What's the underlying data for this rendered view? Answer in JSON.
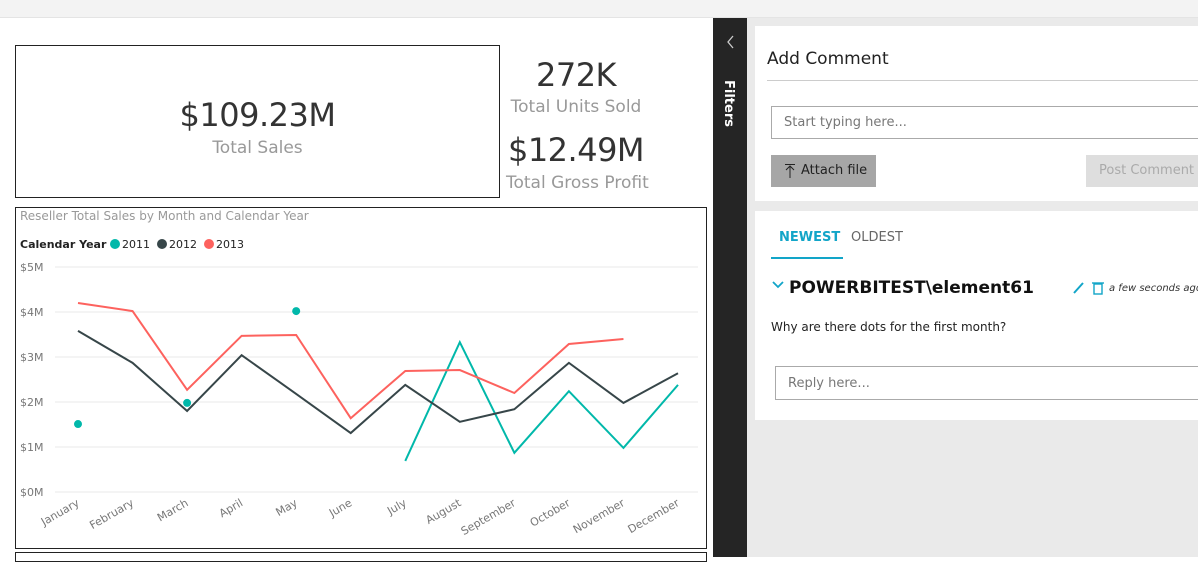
{
  "cards": {
    "total_sales": {
      "value": "$109.23M",
      "label": "Total Sales"
    },
    "units_sold": {
      "value": "272K",
      "label": "Total Units Sold"
    },
    "gross_profit": {
      "value": "$12.49M",
      "label": "Total Gross Profit"
    }
  },
  "chart_data": {
    "type": "line",
    "title": "Reseller Total Sales by Month and Calendar Year",
    "legend_title": "Calendar Year",
    "categories": [
      "January",
      "February",
      "March",
      "April",
      "May",
      "June",
      "July",
      "August",
      "September",
      "October",
      "November",
      "December"
    ],
    "series": [
      {
        "name": "2011",
        "color": "#01b8aa",
        "values": [
          1510000,
          null,
          1980000,
          null,
          4020000,
          null,
          690000,
          3330000,
          870000,
          2240000,
          980000,
          2380000
        ]
      },
      {
        "name": "2012",
        "color": "#374649",
        "values": [
          3580000,
          2870000,
          1800000,
          3040000,
          2180000,
          1310000,
          2380000,
          1560000,
          1840000,
          2870000,
          1980000,
          2640000
        ]
      },
      {
        "name": "2013",
        "color": "#fd625e",
        "values": [
          4200000,
          4020000,
          2270000,
          3470000,
          3490000,
          1640000,
          2690000,
          2710000,
          2200000,
          3290000,
          3400000,
          null
        ]
      }
    ],
    "ylim": [
      0,
      5000000
    ],
    "yticks": [
      {
        "value": 0,
        "label": "$0M"
      },
      {
        "value": 1000000,
        "label": "$1M"
      },
      {
        "value": 2000000,
        "label": "$2M"
      },
      {
        "value": 3000000,
        "label": "$3M"
      },
      {
        "value": 4000000,
        "label": "$4M"
      },
      {
        "value": 5000000,
        "label": "$5M"
      }
    ],
    "grid": true
  },
  "filters_label": "Filters",
  "comments": {
    "title": "Add Comment",
    "input_placeholder": "Start typing here...",
    "attach_button": "Attach file",
    "post_button": "Post Comment",
    "tabs": [
      "NEWEST",
      "OLDEST"
    ],
    "thread": {
      "author": "POWERBITEST\\element61",
      "time": "a few seconds ago",
      "text": "Why are there dots for the first month?",
      "reply_placeholder": "Reply here..."
    }
  }
}
